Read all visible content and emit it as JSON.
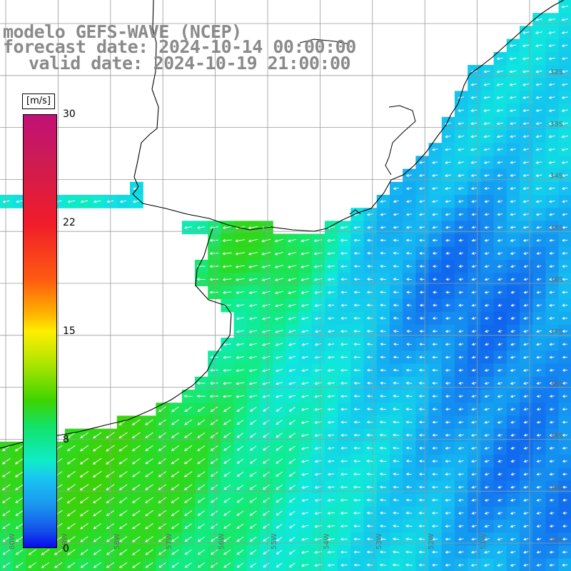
{
  "title": {
    "line1": "modelo GEFS-WAVE (NCEP)",
    "line2": "forecast date: 2024-10-14 00:00:00",
    "line3": "valid date: 2024-10-19 21:00:00"
  },
  "colorbar": {
    "unit": "[m/s]",
    "ticks": [
      "30",
      "22",
      "15",
      "8",
      "0"
    ],
    "stops": [
      "#c21077",
      "#f01c2a",
      "#ff5a10",
      "#ffee00",
      "#3ed400",
      "#10ecc6",
      "#1a98ef",
      "#0a0aee"
    ]
  },
  "lat_labels": [
    "32S",
    "33S",
    "34S",
    "35S",
    "36S",
    "37S",
    "38S",
    "39S",
    "40S",
    "41S"
  ],
  "lon_labels": [
    "60W",
    "59W",
    "58W",
    "57W",
    "56W",
    "55W",
    "54W",
    "53W",
    "52W",
    "51W"
  ],
  "colors": {
    "grid": "#9a9a9a",
    "coast": "#000000",
    "arrow": "#ffffff",
    "land": "#ffffff"
  },
  "field": {
    "description_of_values": "wind speed in m/s over ocean, mostly 7–12",
    "dominant_wind_direction": "from east toward west/southwest"
  }
}
